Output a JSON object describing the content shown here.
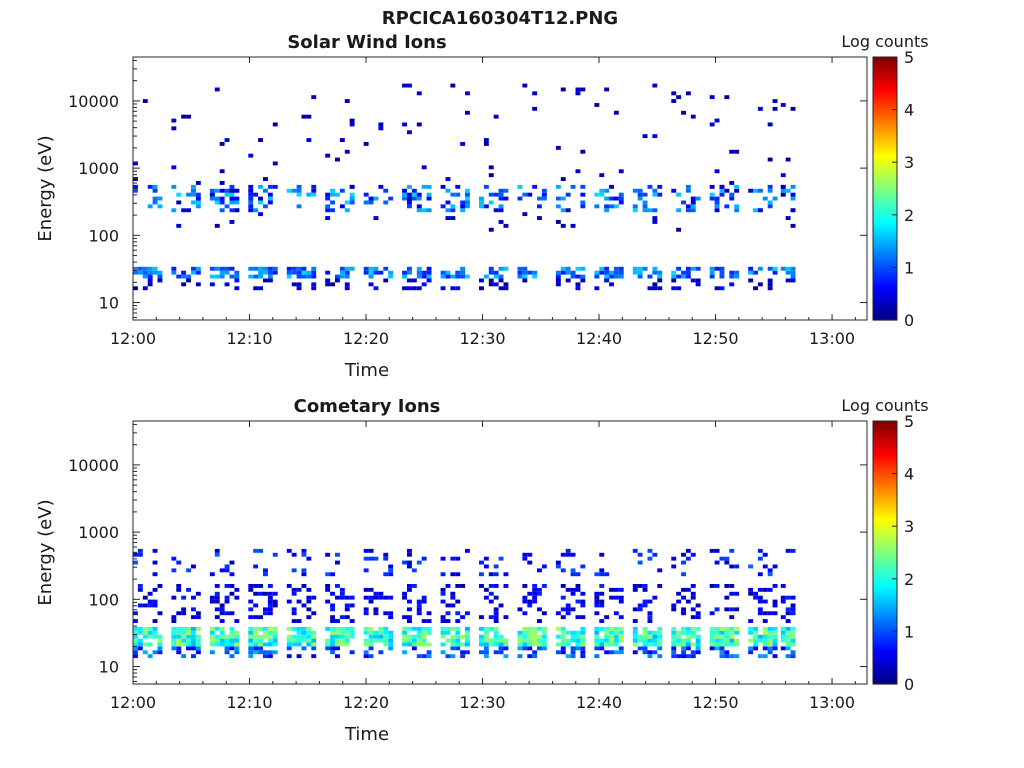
{
  "figure_title": "RPCICA160304T12.PNG",
  "colors": {
    "colormap": [
      "#00007f",
      "#0000ff",
      "#007fff",
      "#00ffff",
      "#7fff7f",
      "#ffff00",
      "#ff7f00",
      "#ff0000",
      "#7f0000"
    ],
    "axis": "#262626"
  },
  "chart_data": [
    {
      "type": "heatmap",
      "title": "Solar Wind Ions",
      "xlabel": "Time",
      "ylabel": "Energy (eV)",
      "x_ticks": [
        "12:00",
        "12:10",
        "12:20",
        "12:30",
        "12:40",
        "12:50",
        "13:00"
      ],
      "y_ticks": [
        "10",
        "100",
        "1000",
        "10000"
      ],
      "y_tick_values": [
        10,
        100,
        1000,
        10000
      ],
      "xlim_minutes_after_12_00": [
        0,
        63
      ],
      "ylim": [
        5.5,
        45000
      ],
      "y_scale": "log",
      "colorbar": {
        "label": "Log counts",
        "range": [
          0,
          5
        ],
        "ticks": [
          "0",
          "1",
          "2",
          "3",
          "4",
          "5"
        ]
      },
      "scan_start_minutes": [
        0,
        3.3,
        6.6,
        9.9,
        13.2,
        16.5,
        19.8,
        23.1,
        26.4,
        29.7,
        33.0,
        36.3,
        39.6,
        42.9,
        46.2,
        49.5,
        52.8,
        55.6
      ],
      "data_end_minute": 56.5,
      "bands": [
        {
          "emin": 20,
          "emax": 32,
          "level": 1.2,
          "spread": 0.5,
          "fill": 0.62
        },
        {
          "emin": 14,
          "emax": 20,
          "level": 0.4,
          "spread": 0.3,
          "fill": 0.25
        },
        {
          "emin": 200,
          "emax": 550,
          "level": 1.1,
          "spread": 0.6,
          "fill": 0.35
        },
        {
          "emin": 100,
          "emax": 20000,
          "level": 0.3,
          "spread": 0.2,
          "fill": 0.035
        }
      ]
    },
    {
      "type": "heatmap",
      "title": "Cometary Ions",
      "xlabel": "Time",
      "ylabel": "Energy (eV)",
      "x_ticks": [
        "12:00",
        "12:10",
        "12:20",
        "12:30",
        "12:40",
        "12:50",
        "13:00"
      ],
      "y_ticks": [
        "10",
        "100",
        "1000",
        "10000"
      ],
      "y_tick_values": [
        10,
        100,
        1000,
        10000
      ],
      "xlim_minutes_after_12_00": [
        0,
        63
      ],
      "ylim": [
        5.5,
        45000
      ],
      "y_scale": "log",
      "colorbar": {
        "label": "Log counts",
        "range": [
          0,
          5
        ],
        "ticks": [
          "0",
          "1",
          "2",
          "3",
          "4",
          "5"
        ]
      },
      "scan_start_minutes": [
        0,
        3.3,
        6.6,
        9.9,
        13.2,
        16.5,
        19.8,
        23.1,
        26.4,
        29.7,
        33.0,
        36.3,
        39.6,
        42.9,
        46.2,
        49.5,
        52.8,
        55.6
      ],
      "data_end_minute": 56.7,
      "bands": [
        {
          "emin": 18,
          "emax": 36,
          "level": 2.1,
          "spread": 0.6,
          "fill": 0.85
        },
        {
          "emin": 12,
          "emax": 18,
          "level": 1.0,
          "spread": 0.5,
          "fill": 0.5
        },
        {
          "emin": 40,
          "emax": 150,
          "level": 0.5,
          "spread": 0.3,
          "fill": 0.3
        },
        {
          "emin": 200,
          "emax": 550,
          "level": 0.7,
          "spread": 0.4,
          "fill": 0.18
        }
      ]
    }
  ]
}
